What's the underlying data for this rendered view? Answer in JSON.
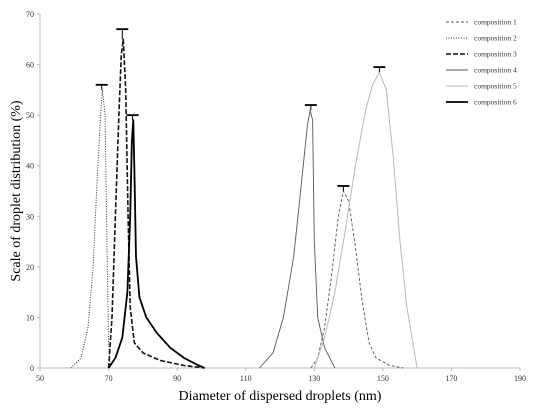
{
  "chart_data": {
    "type": "line",
    "title": "",
    "xlabel": "Diameter of dispersed droplets (nm)",
    "ylabel": "Scale of droplet distribution (%)",
    "xlim": [
      50,
      190
    ],
    "ylim": [
      0,
      70
    ],
    "x_ticks": [
      "50",
      "70",
      "90",
      "110",
      "130",
      "150",
      "170",
      "190"
    ],
    "y_ticks": [
      "0",
      "10",
      "20",
      "30",
      "40",
      "50",
      "60",
      "70"
    ],
    "grid": false,
    "legend_position": "top-right",
    "series": [
      {
        "name": "composition 1",
        "color": "#555555",
        "dash": "3,2",
        "width": 0.9,
        "error_cap": {
          "x": 138.5,
          "y": 36
        },
        "points": [
          [
            129,
            0
          ],
          [
            131,
            2
          ],
          [
            133,
            8
          ],
          [
            135,
            18
          ],
          [
            137,
            30
          ],
          [
            138.5,
            35
          ],
          [
            140,
            33
          ],
          [
            142,
            24
          ],
          [
            144,
            13
          ],
          [
            146,
            5
          ],
          [
            148,
            2
          ],
          [
            152,
            0.5
          ],
          [
            156,
            0
          ]
        ]
      },
      {
        "name": "composition 2",
        "color": "#333333",
        "dash": "1,1.5",
        "width": 1,
        "error_cap": {
          "x": 68,
          "y": 56
        },
        "points": [
          [
            59,
            0
          ],
          [
            62,
            2
          ],
          [
            64,
            8
          ],
          [
            65.5,
            20
          ],
          [
            66.5,
            35
          ],
          [
            67.5,
            48
          ],
          [
            68.2,
            55
          ],
          [
            69,
            50
          ],
          [
            69.5,
            25
          ],
          [
            70,
            5
          ],
          [
            70.5,
            0
          ]
        ]
      },
      {
        "name": "composition 3",
        "color": "#111111",
        "dash": "5,2",
        "width": 1.6,
        "error_cap": {
          "x": 74,
          "y": 67
        },
        "points": [
          [
            70,
            0
          ],
          [
            71,
            10
          ],
          [
            72,
            30
          ],
          [
            73,
            50
          ],
          [
            73.7,
            62
          ],
          [
            74.3,
            65
          ],
          [
            75,
            55
          ],
          [
            75.7,
            30
          ],
          [
            76.3,
            12
          ],
          [
            77.5,
            5
          ],
          [
            80,
            3
          ],
          [
            85,
            1.5
          ],
          [
            92,
            0.5
          ],
          [
            98,
            0
          ]
        ]
      },
      {
        "name": "composition 4",
        "color": "#555555",
        "dash": "",
        "width": 0.9,
        "error_cap": {
          "x": 129,
          "y": 52
        },
        "points": [
          [
            114,
            0
          ],
          [
            118,
            3
          ],
          [
            121,
            10
          ],
          [
            124,
            22
          ],
          [
            126,
            35
          ],
          [
            128,
            48
          ],
          [
            128.8,
            51
          ],
          [
            129.5,
            49
          ],
          [
            130,
            25
          ],
          [
            131,
            10
          ],
          [
            133,
            4
          ],
          [
            136,
            0
          ]
        ]
      },
      {
        "name": "composition 5",
        "color": "#b8b8b8",
        "dash": "",
        "width": 1,
        "error_cap": {
          "x": 149,
          "y": 59.5
        },
        "points": [
          [
            130,
            0
          ],
          [
            133,
            6
          ],
          [
            136,
            15
          ],
          [
            139,
            27
          ],
          [
            142,
            40
          ],
          [
            145,
            51
          ],
          [
            147,
            56
          ],
          [
            149,
            58.5
          ],
          [
            151,
            55
          ],
          [
            153,
            42
          ],
          [
            155,
            25
          ],
          [
            157,
            12
          ],
          [
            159,
            4
          ],
          [
            160,
            0
          ]
        ]
      },
      {
        "name": "composition 6",
        "color": "#000000",
        "dash": "",
        "width": 1.8,
        "error_cap": {
          "x": 77,
          "y": 50
        },
        "points": [
          [
            70,
            0
          ],
          [
            72,
            2
          ],
          [
            74,
            6
          ],
          [
            75.5,
            15
          ],
          [
            76.3,
            30
          ],
          [
            76.8,
            45
          ],
          [
            77.2,
            49
          ],
          [
            77.5,
            40
          ],
          [
            78,
            22
          ],
          [
            79,
            14
          ],
          [
            81,
            10
          ],
          [
            84,
            7
          ],
          [
            88,
            4
          ],
          [
            92,
            2
          ],
          [
            96,
            0.6
          ],
          [
            98,
            0
          ]
        ]
      }
    ]
  }
}
